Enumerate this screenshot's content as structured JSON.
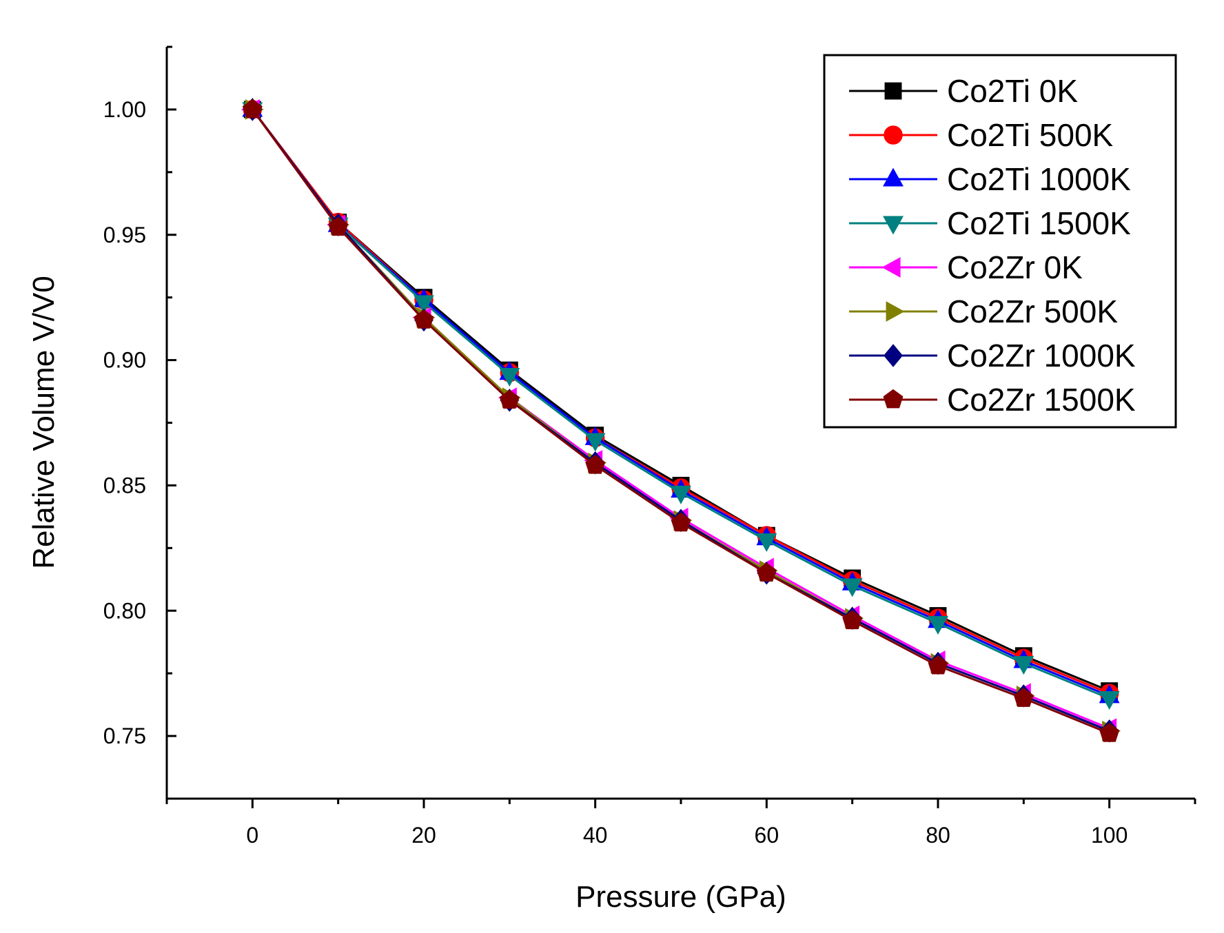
{
  "chart_data": {
    "type": "line",
    "title": "",
    "xlabel": "Pressure (GPa)",
    "ylabel": "Relative Volume V/V0",
    "xlim": [
      -10,
      110
    ],
    "ylim": [
      0.725,
      1.025
    ],
    "x_ticks": [
      0,
      20,
      40,
      60,
      80,
      100
    ],
    "x_tick_labels": [
      "0",
      "20",
      "40",
      "60",
      "80",
      "100"
    ],
    "x_minor_ticks": [
      -10,
      10,
      30,
      50,
      70,
      90,
      110
    ],
    "y_ticks": [
      0.75,
      0.8,
      0.85,
      0.9,
      0.95,
      1.0
    ],
    "y_tick_labels": [
      "0.75",
      "0.80",
      "0.85",
      "0.90",
      "0.95",
      "1.00"
    ],
    "y_minor_ticks": [
      0.775,
      0.825,
      0.875,
      0.925,
      0.975,
      1.025
    ],
    "grid": false,
    "legend_position": "top-right",
    "x": [
      0,
      10,
      20,
      30,
      40,
      50,
      60,
      70,
      80,
      90,
      100
    ],
    "series": [
      {
        "name": "Co2Ti 0K",
        "color": "#000000",
        "marker": "square",
        "values": [
          1.0,
          0.955,
          0.925,
          0.896,
          0.87,
          0.85,
          0.83,
          0.813,
          0.798,
          0.782,
          0.768
        ]
      },
      {
        "name": "Co2Ti 500K",
        "color": "#ff0000",
        "marker": "circle",
        "values": [
          1.0,
          0.955,
          0.924,
          0.895,
          0.869,
          0.849,
          0.83,
          0.812,
          0.797,
          0.781,
          0.767
        ]
      },
      {
        "name": "Co2Ti 1000K",
        "color": "#0000ff",
        "marker": "triangle-up",
        "values": [
          1.0,
          0.954,
          0.924,
          0.895,
          0.869,
          0.848,
          0.829,
          0.811,
          0.796,
          0.78,
          0.766
        ]
      },
      {
        "name": "Co2Ti 1500K",
        "color": "#008080",
        "marker": "triangle-down",
        "values": [
          1.0,
          0.954,
          0.923,
          0.894,
          0.868,
          0.847,
          0.828,
          0.81,
          0.795,
          0.779,
          0.765
        ]
      },
      {
        "name": "Co2Zr 0K",
        "color": "#ff00ff",
        "marker": "triangle-left",
        "values": [
          1.0,
          0.954,
          0.917,
          0.885,
          0.86,
          0.837,
          0.817,
          0.798,
          0.78,
          0.767,
          0.753
        ]
      },
      {
        "name": "Co2Zr 500K",
        "color": "#808000",
        "marker": "triangle-right",
        "values": [
          1.0,
          0.954,
          0.917,
          0.885,
          0.859,
          0.836,
          0.816,
          0.797,
          0.779,
          0.766,
          0.752
        ]
      },
      {
        "name": "Co2Zr 1000K",
        "color": "#000080",
        "marker": "diamond",
        "values": [
          1.0,
          0.954,
          0.916,
          0.884,
          0.859,
          0.836,
          0.815,
          0.797,
          0.779,
          0.766,
          0.752
        ]
      },
      {
        "name": "Co2Zr 1500K",
        "color": "#800000",
        "marker": "pentagon",
        "values": [
          1.0,
          0.953,
          0.916,
          0.884,
          0.858,
          0.835,
          0.815,
          0.796,
          0.778,
          0.765,
          0.751
        ]
      }
    ]
  }
}
